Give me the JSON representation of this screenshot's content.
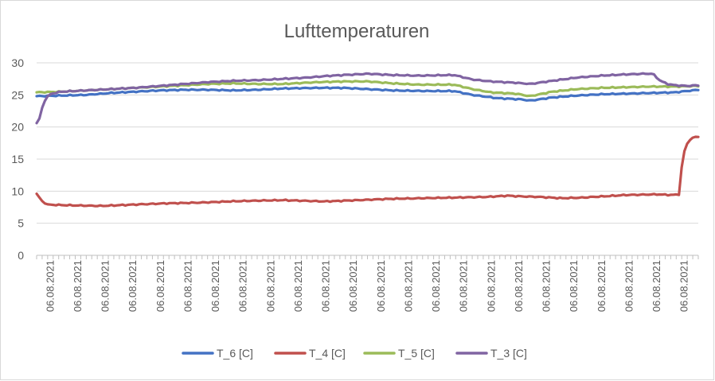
{
  "chart_data": {
    "type": "line",
    "title": "Lufttemperaturen",
    "xlabel": "",
    "ylabel": "",
    "ylim": [
      0,
      30
    ],
    "yticks": [
      0,
      5,
      10,
      15,
      20,
      25,
      30
    ],
    "grid": "horizontal",
    "legend_position": "bottom",
    "x_tick_labels": [
      "06.08.2021",
      "06.08.2021",
      "06.08.2021",
      "06.08.2021",
      "06.08.2021",
      "06.08.2021",
      "06.08.2021",
      "06.08.2021",
      "06.08.2021",
      "06.08.2021",
      "06.08.2021",
      "06.08.2021",
      "06.08.2021",
      "06.08.2021",
      "06.08.2021",
      "06.08.2021",
      "06.08.2021",
      "06.08.2021",
      "06.08.2021",
      "06.08.2021",
      "06.08.2021",
      "06.08.2021",
      "06.08.2021",
      "06.08.2021"
    ],
    "n_points": 240,
    "series": [
      {
        "name": "T_6 [C]",
        "color": "#4472c4",
        "knots": [
          [
            0,
            24.8
          ],
          [
            20,
            24.9
          ],
          [
            40,
            25.0
          ],
          [
            60,
            25.3
          ],
          [
            80,
            25.5
          ],
          [
            100,
            25.7
          ],
          [
            120,
            25.8
          ],
          [
            140,
            25.8
          ],
          [
            160,
            25.7
          ],
          [
            180,
            25.8
          ],
          [
            200,
            26.0
          ],
          [
            230,
            26.1
          ],
          [
            250,
            26.1
          ],
          [
            270,
            25.9
          ],
          [
            290,
            25.7
          ],
          [
            320,
            25.6
          ],
          [
            340,
            25.6
          ],
          [
            355,
            25.0
          ],
          [
            375,
            24.5
          ],
          [
            395,
            24.3
          ],
          [
            402,
            24.1
          ],
          [
            420,
            24.6
          ],
          [
            440,
            24.9
          ],
          [
            460,
            25.1
          ],
          [
            480,
            25.2
          ],
          [
            500,
            25.3
          ],
          [
            520,
            25.4
          ],
          [
            539,
            25.8
          ]
        ]
      },
      {
        "name": "T_4 [C]",
        "color": "#c0504d",
        "knots": [
          [
            0,
            9.6
          ],
          [
            4,
            8.6
          ],
          [
            10,
            7.9
          ],
          [
            30,
            7.8
          ],
          [
            60,
            7.7
          ],
          [
            90,
            7.9
          ],
          [
            120,
            8.1
          ],
          [
            150,
            8.2
          ],
          [
            180,
            8.4
          ],
          [
            200,
            8.5
          ],
          [
            230,
            8.6
          ],
          [
            250,
            8.5
          ],
          [
            270,
            8.4
          ],
          [
            300,
            8.6
          ],
          [
            330,
            8.8
          ],
          [
            360,
            8.9
          ],
          [
            390,
            9.0
          ],
          [
            420,
            9.1
          ],
          [
            440,
            9.3
          ],
          [
            450,
            9.2
          ],
          [
            470,
            9.1
          ],
          [
            490,
            8.9
          ],
          [
            510,
            9.0
          ],
          [
            530,
            9.2
          ],
          [
            550,
            9.4
          ],
          [
            580,
            9.5
          ],
          [
            593,
            9.4
          ],
          [
            600,
            9.5
          ],
          [
            603,
            14.5
          ],
          [
            606,
            17.0
          ],
          [
            610,
            18.0
          ],
          [
            614,
            18.4
          ],
          [
            618,
            18.5
          ]
        ]
      },
      {
        "name": "T_5 [C]",
        "color": "#9bbb59",
        "knots": [
          [
            0,
            25.4
          ],
          [
            20,
            25.5
          ],
          [
            40,
            25.7
          ],
          [
            60,
            25.9
          ],
          [
            80,
            26.1
          ],
          [
            100,
            26.3
          ],
          [
            120,
            26.5
          ],
          [
            140,
            26.7
          ],
          [
            160,
            26.8
          ],
          [
            180,
            26.7
          ],
          [
            200,
            26.7
          ],
          [
            230,
            27.0
          ],
          [
            250,
            27.1
          ],
          [
            270,
            27.1
          ],
          [
            290,
            26.8
          ],
          [
            310,
            26.6
          ],
          [
            340,
            26.6
          ],
          [
            355,
            25.9
          ],
          [
            370,
            25.4
          ],
          [
            390,
            25.2
          ],
          [
            402,
            24.8
          ],
          [
            420,
            25.5
          ],
          [
            440,
            25.9
          ],
          [
            460,
            26.1
          ],
          [
            480,
            26.2
          ],
          [
            500,
            26.3
          ],
          [
            520,
            26.3
          ],
          [
            539,
            26.4
          ]
        ]
      },
      {
        "name": "T_3 [C]",
        "color": "#8064a2",
        "knots": [
          [
            0,
            20.6
          ],
          [
            3,
            21.5
          ],
          [
            5,
            23.5
          ],
          [
            8,
            24.6
          ],
          [
            12,
            25.2
          ],
          [
            20,
            25.5
          ],
          [
            40,
            25.7
          ],
          [
            60,
            25.9
          ],
          [
            80,
            26.1
          ],
          [
            100,
            26.4
          ],
          [
            120,
            26.7
          ],
          [
            140,
            27.0
          ],
          [
            160,
            27.2
          ],
          [
            180,
            27.3
          ],
          [
            200,
            27.5
          ],
          [
            220,
            27.7
          ],
          [
            240,
            28.0
          ],
          [
            260,
            28.2
          ],
          [
            270,
            28.3
          ],
          [
            290,
            28.1
          ],
          [
            310,
            28.0
          ],
          [
            340,
            28.1
          ],
          [
            355,
            27.4
          ],
          [
            370,
            27.1
          ],
          [
            390,
            26.9
          ],
          [
            402,
            26.7
          ],
          [
            420,
            27.2
          ],
          [
            440,
            27.7
          ],
          [
            460,
            28.0
          ],
          [
            480,
            28.2
          ],
          [
            495,
            28.3
          ],
          [
            502,
            28.3
          ],
          [
            508,
            27.2
          ],
          [
            514,
            26.7
          ],
          [
            520,
            26.5
          ],
          [
            530,
            26.4
          ],
          [
            539,
            26.5
          ]
        ]
      }
    ]
  }
}
